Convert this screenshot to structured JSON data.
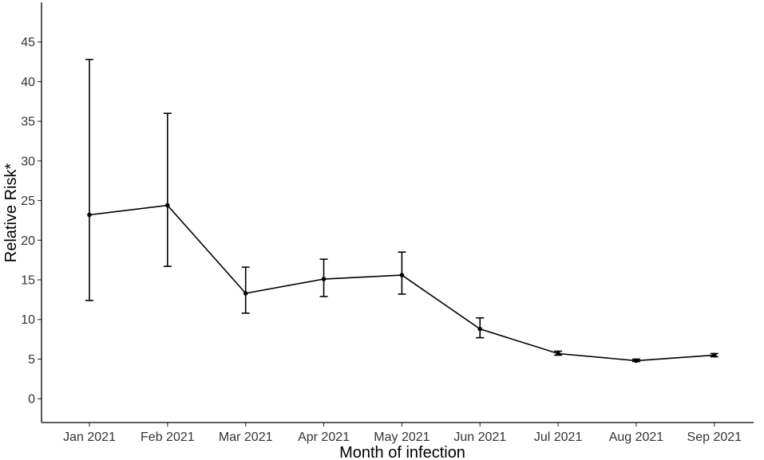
{
  "chart_data": {
    "type": "line",
    "xlabel": "Month of infection",
    "ylabel": "Relative Risk*",
    "ylim": [
      -3,
      50
    ],
    "yticks": [
      0,
      5,
      10,
      15,
      20,
      25,
      30,
      35,
      40,
      45
    ],
    "categories": [
      "Jan 2021",
      "Feb 2021",
      "Mar 2021",
      "Apr 2021",
      "May 2021",
      "Jun 2021",
      "Jul 2021",
      "Aug 2021",
      "Sep 2021"
    ],
    "values": [
      23.2,
      24.4,
      13.3,
      15.1,
      15.6,
      8.8,
      5.7,
      4.8,
      5.5
    ],
    "lower": [
      12.4,
      16.7,
      10.8,
      12.9,
      13.2,
      7.7,
      5.5,
      4.7,
      5.3
    ],
    "upper": [
      42.8,
      36.0,
      16.6,
      17.6,
      18.5,
      10.2,
      6.0,
      5.0,
      5.7
    ],
    "grid": false,
    "legend": "none"
  }
}
